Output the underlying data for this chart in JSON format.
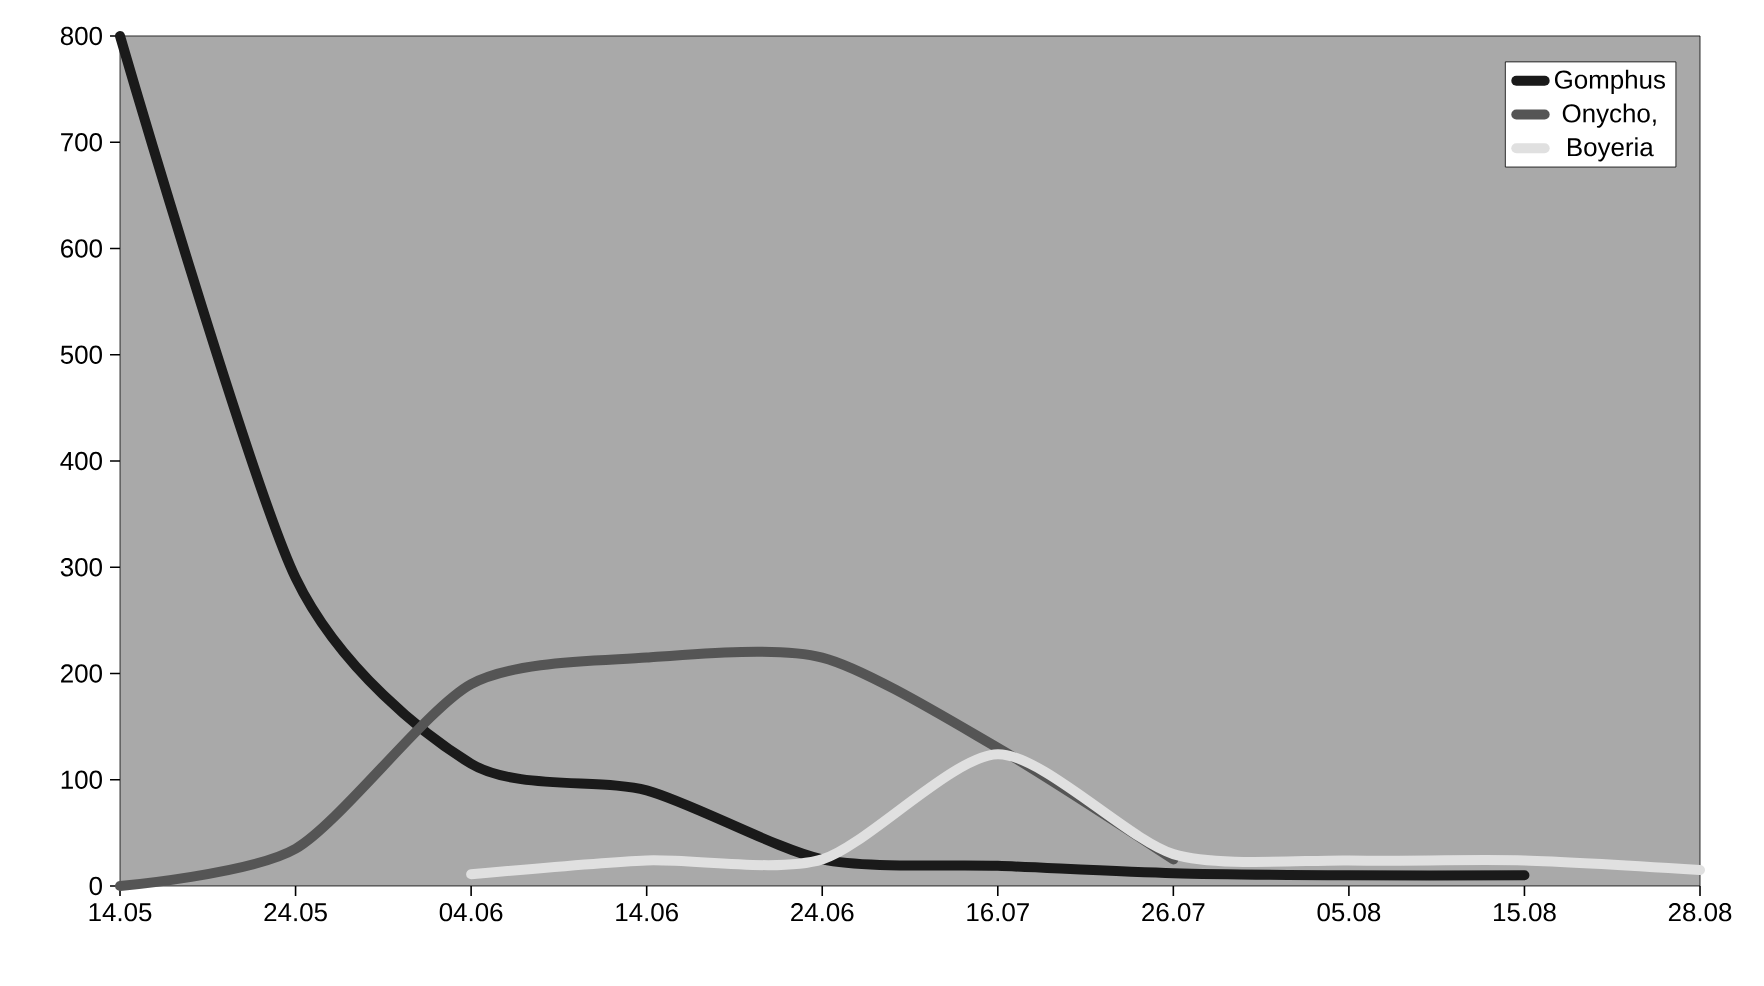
{
  "chart_data": {
    "type": "line",
    "categories": [
      "14.05",
      "24.05",
      "04.06",
      "14.06",
      "24.06",
      "16.07",
      "26.07",
      "05.08",
      "15.08",
      "28.08"
    ],
    "ylim": [
      0,
      800
    ],
    "yticks": [
      0,
      100,
      200,
      300,
      400,
      500,
      600,
      700,
      800
    ],
    "grid": false,
    "legend": "top right",
    "series": [
      {
        "name": "Gomphus",
        "color": "#1a1a1a",
        "values": [
          800,
          290,
          115,
          90,
          25,
          19,
          12,
          10,
          10,
          null
        ]
      },
      {
        "name": "Onycho,",
        "color": "#555555",
        "values": [
          0,
          35,
          190,
          215,
          215,
          130,
          25,
          null,
          null,
          null
        ]
      },
      {
        "name": "Boyeria",
        "color": "#e0e0e0",
        "values": [
          null,
          null,
          11,
          24,
          25,
          124,
          30,
          24,
          24,
          15
        ]
      }
    ]
  }
}
